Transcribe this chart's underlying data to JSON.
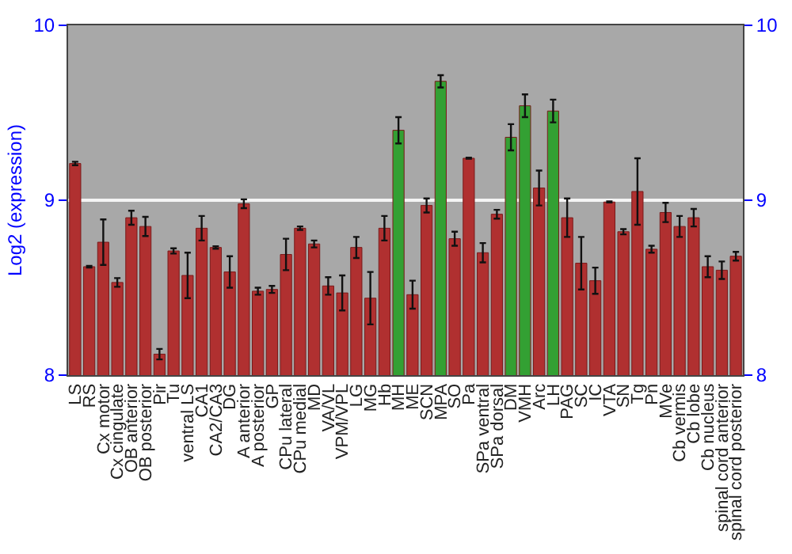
{
  "chart_data": {
    "type": "bar",
    "ylabel": "Log2 (expression)",
    "categories": [
      "LS",
      "RS",
      "Cx motor",
      "Cx cingulate",
      "OB anterior",
      "OB posterior",
      "Pir",
      "Tu",
      "ventral LS",
      "CA1",
      "CA2/CA3",
      "DG",
      "A anterior",
      "A posterior",
      "GP",
      "CPu lateral",
      "CPu medial",
      "MD",
      "VA/VL",
      "VPM/VPL",
      "LG",
      "MG",
      "Hb",
      "MH",
      "ME",
      "SCN",
      "MPA",
      "SO",
      "Pa",
      "SPa ventral",
      "SPa dorsal",
      "DM",
      "VMH",
      "Arc",
      "LH",
      "PAG",
      "SC",
      "IC",
      "VTA",
      "SN",
      "Tg",
      "Pn",
      "MVe",
      "Cb vermis",
      "Cb lobe",
      "Cb nucleus",
      "spinal cord anterior",
      "spinal cord posterior"
    ],
    "values": [
      9.21,
      8.62,
      8.76,
      8.53,
      8.9,
      8.85,
      8.12,
      8.71,
      8.57,
      8.84,
      8.73,
      8.59,
      8.98,
      8.48,
      8.49,
      8.69,
      8.84,
      8.75,
      8.51,
      8.47,
      8.73,
      8.44,
      8.84,
      9.4,
      8.46,
      8.97,
      9.68,
      8.78,
      9.24,
      8.7,
      8.92,
      9.36,
      9.54,
      9.07,
      9.51,
      8.9,
      8.64,
      8.54,
      8.99,
      8.82,
      9.05,
      8.72,
      8.93,
      8.85,
      8.9,
      8.62,
      8.6,
      8.68
    ],
    "errors": [
      0.01,
      0.005,
      0.13,
      0.025,
      0.04,
      0.055,
      0.03,
      0.015,
      0.13,
      0.07,
      0.007,
      0.09,
      0.025,
      0.02,
      0.02,
      0.09,
      0.01,
      0.02,
      0.05,
      0.1,
      0.06,
      0.15,
      0.07,
      0.075,
      0.08,
      0.04,
      0.035,
      0.04,
      0.003,
      0.055,
      0.025,
      0.075,
      0.065,
      0.1,
      0.065,
      0.11,
      0.15,
      0.075,
      0.003,
      0.015,
      0.19,
      0.02,
      0.055,
      0.06,
      0.05,
      0.06,
      0.05,
      0.025
    ],
    "colors": [
      "#b03030",
      "#b03030",
      "#b03030",
      "#b03030",
      "#b03030",
      "#b03030",
      "#b03030",
      "#b03030",
      "#b03030",
      "#b03030",
      "#b03030",
      "#b03030",
      "#b03030",
      "#b03030",
      "#b03030",
      "#b03030",
      "#b03030",
      "#b03030",
      "#b03030",
      "#b03030",
      "#b03030",
      "#b03030",
      "#b03030",
      "#33a033",
      "#b03030",
      "#b03030",
      "#33a033",
      "#b03030",
      "#b03030",
      "#b03030",
      "#b03030",
      "#33a033",
      "#33a033",
      "#b03030",
      "#33a033",
      "#b03030",
      "#b03030",
      "#b03030",
      "#b03030",
      "#b03030",
      "#b03030",
      "#b03030",
      "#b03030",
      "#b03030",
      "#b03030",
      "#b03030",
      "#b03030",
      "#b03030"
    ],
    "ylim": [
      8,
      10
    ],
    "yticks": [
      8,
      9,
      10
    ],
    "y2lim": [
      8,
      10
    ],
    "y2ticks": [
      8,
      9,
      10
    ],
    "grid": "y"
  }
}
